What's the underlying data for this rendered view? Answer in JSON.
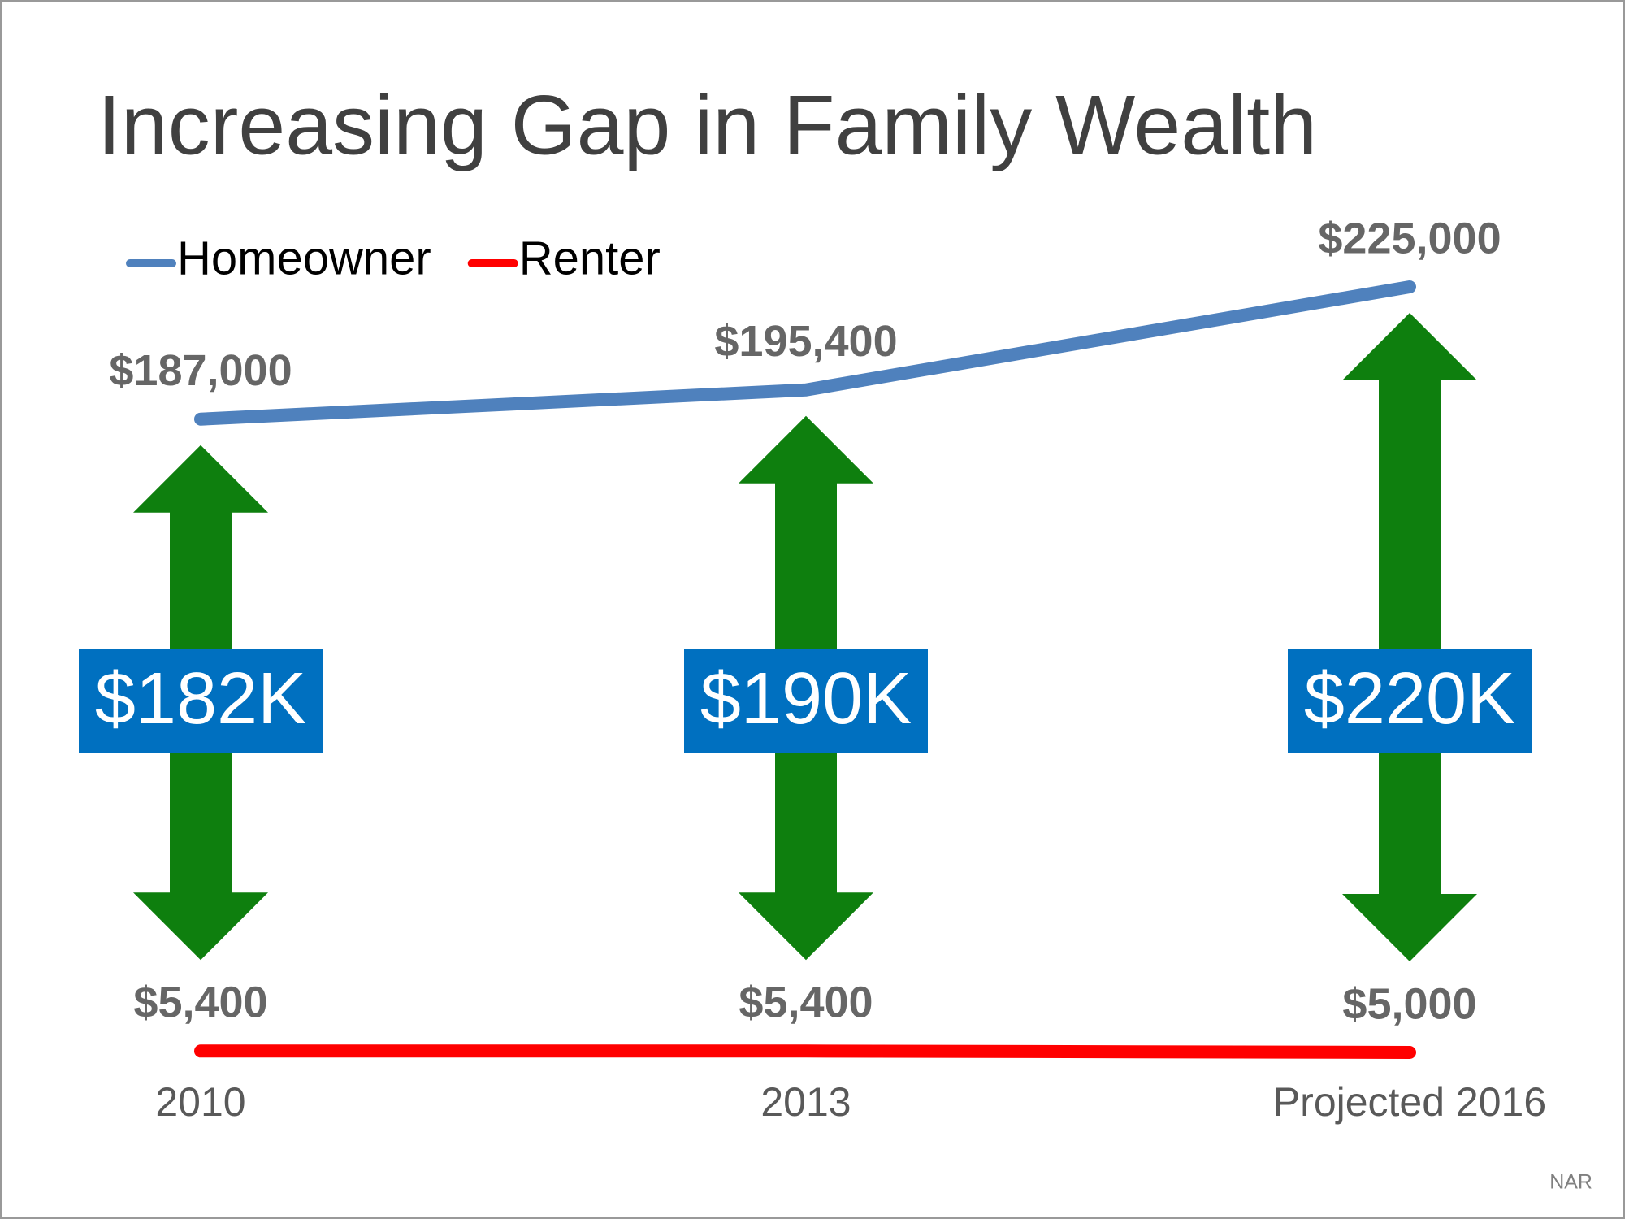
{
  "chart_data": {
    "type": "line",
    "title": "Increasing Gap in Family Wealth",
    "categories": [
      "2010",
      "2013",
      "Projected 2016"
    ],
    "series": [
      {
        "name": "Homeowner",
        "color": "#4f81bd",
        "values": [
          187000,
          195400,
          225000
        ],
        "value_labels": [
          "$187,000",
          "$195,400",
          "$225,000"
        ]
      },
      {
        "name": "Renter",
        "color": "#ff0000",
        "values": [
          5400,
          5400,
          5000
        ],
        "value_labels": [
          "$5,400",
          "$5,400",
          "$5,000"
        ]
      }
    ],
    "gaps": {
      "values": [
        182000,
        190000,
        220000
      ],
      "value_labels": [
        "$182K",
        "$190K",
        "$220K"
      ],
      "color": "#0e7f0e",
      "label_color": "#0070c0"
    },
    "source": "NAR"
  }
}
